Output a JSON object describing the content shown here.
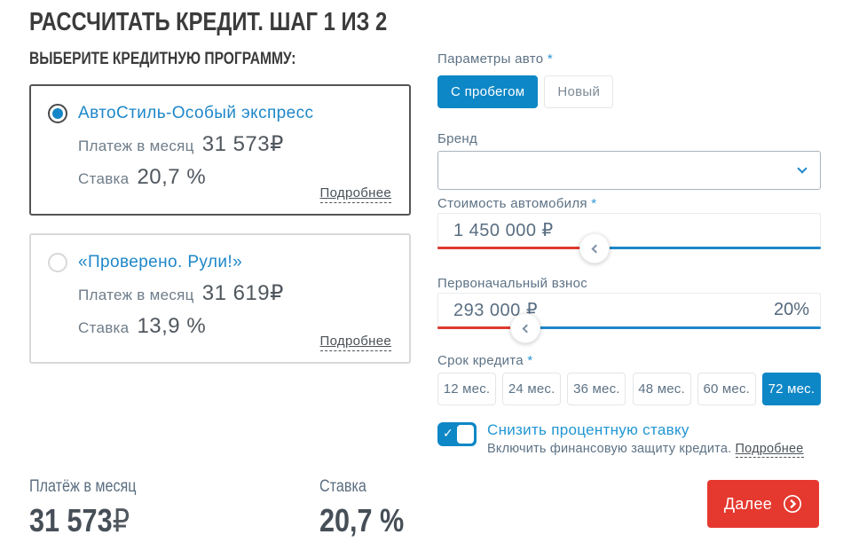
{
  "colors": {
    "accent_blue": "#0e87c6",
    "accent_red": "#e5392f",
    "link_blue": "#1e87c9",
    "slider_red": "#e0392e",
    "slider_blue": "#1e87c9"
  },
  "header": {
    "title": "РАССЧИТАТЬ КРЕДИТ. ШАГ 1 ИЗ 2",
    "subtitle": "ВЫБЕРИТЕ КРЕДИТНУЮ ПРОГРАММУ:"
  },
  "programs": [
    {
      "name": "АвтоСтиль-Особый экспресс",
      "selected": true,
      "payment_label": "Платеж в месяц",
      "payment": "31 573",
      "currency": "₽",
      "rate_label": "Ставка",
      "rate": "20,7 %",
      "details_label": "Подробнее"
    },
    {
      "name": "«Проверено. Рули!»",
      "selected": false,
      "payment_label": "Платеж в месяц",
      "payment": "31 619",
      "currency": "₽",
      "rate_label": "Ставка",
      "rate": "13,9 %",
      "details_label": "Подробнее"
    }
  ],
  "form": {
    "car_params": {
      "label": "Параметры авто",
      "required": "*",
      "options": [
        {
          "label": "С пробегом",
          "selected": true
        },
        {
          "label": "Новый",
          "selected": false
        }
      ]
    },
    "brand": {
      "label": "Бренд",
      "value": ""
    },
    "price": {
      "label": "Стоимость автомобиля",
      "required": "*",
      "value": "1 450 000 ₽",
      "slider_percent": 41
    },
    "down_payment": {
      "label": "Первоначальный взнос",
      "value": "293 000 ₽",
      "percent": "20%",
      "slider_percent": 23
    },
    "term": {
      "label": "Срок кредита",
      "required": "*",
      "options": [
        "12 мес.",
        "24 мес.",
        "36 мес.",
        "48 мес.",
        "60 мес.",
        "72 мес."
      ],
      "selected": "72 мес."
    },
    "protection": {
      "toggle_on": true,
      "check": "✓",
      "title": "Снизить процентную ставку",
      "note": "Включить финансовую защиту кредита.",
      "details_label": "Подробнее"
    },
    "next_button": {
      "label": "Далее"
    }
  },
  "summary": {
    "payment_label": "Платёж в месяц",
    "payment": "31 573",
    "currency": "₽",
    "rate_label": "Ставка",
    "rate": "20,7 %"
  }
}
